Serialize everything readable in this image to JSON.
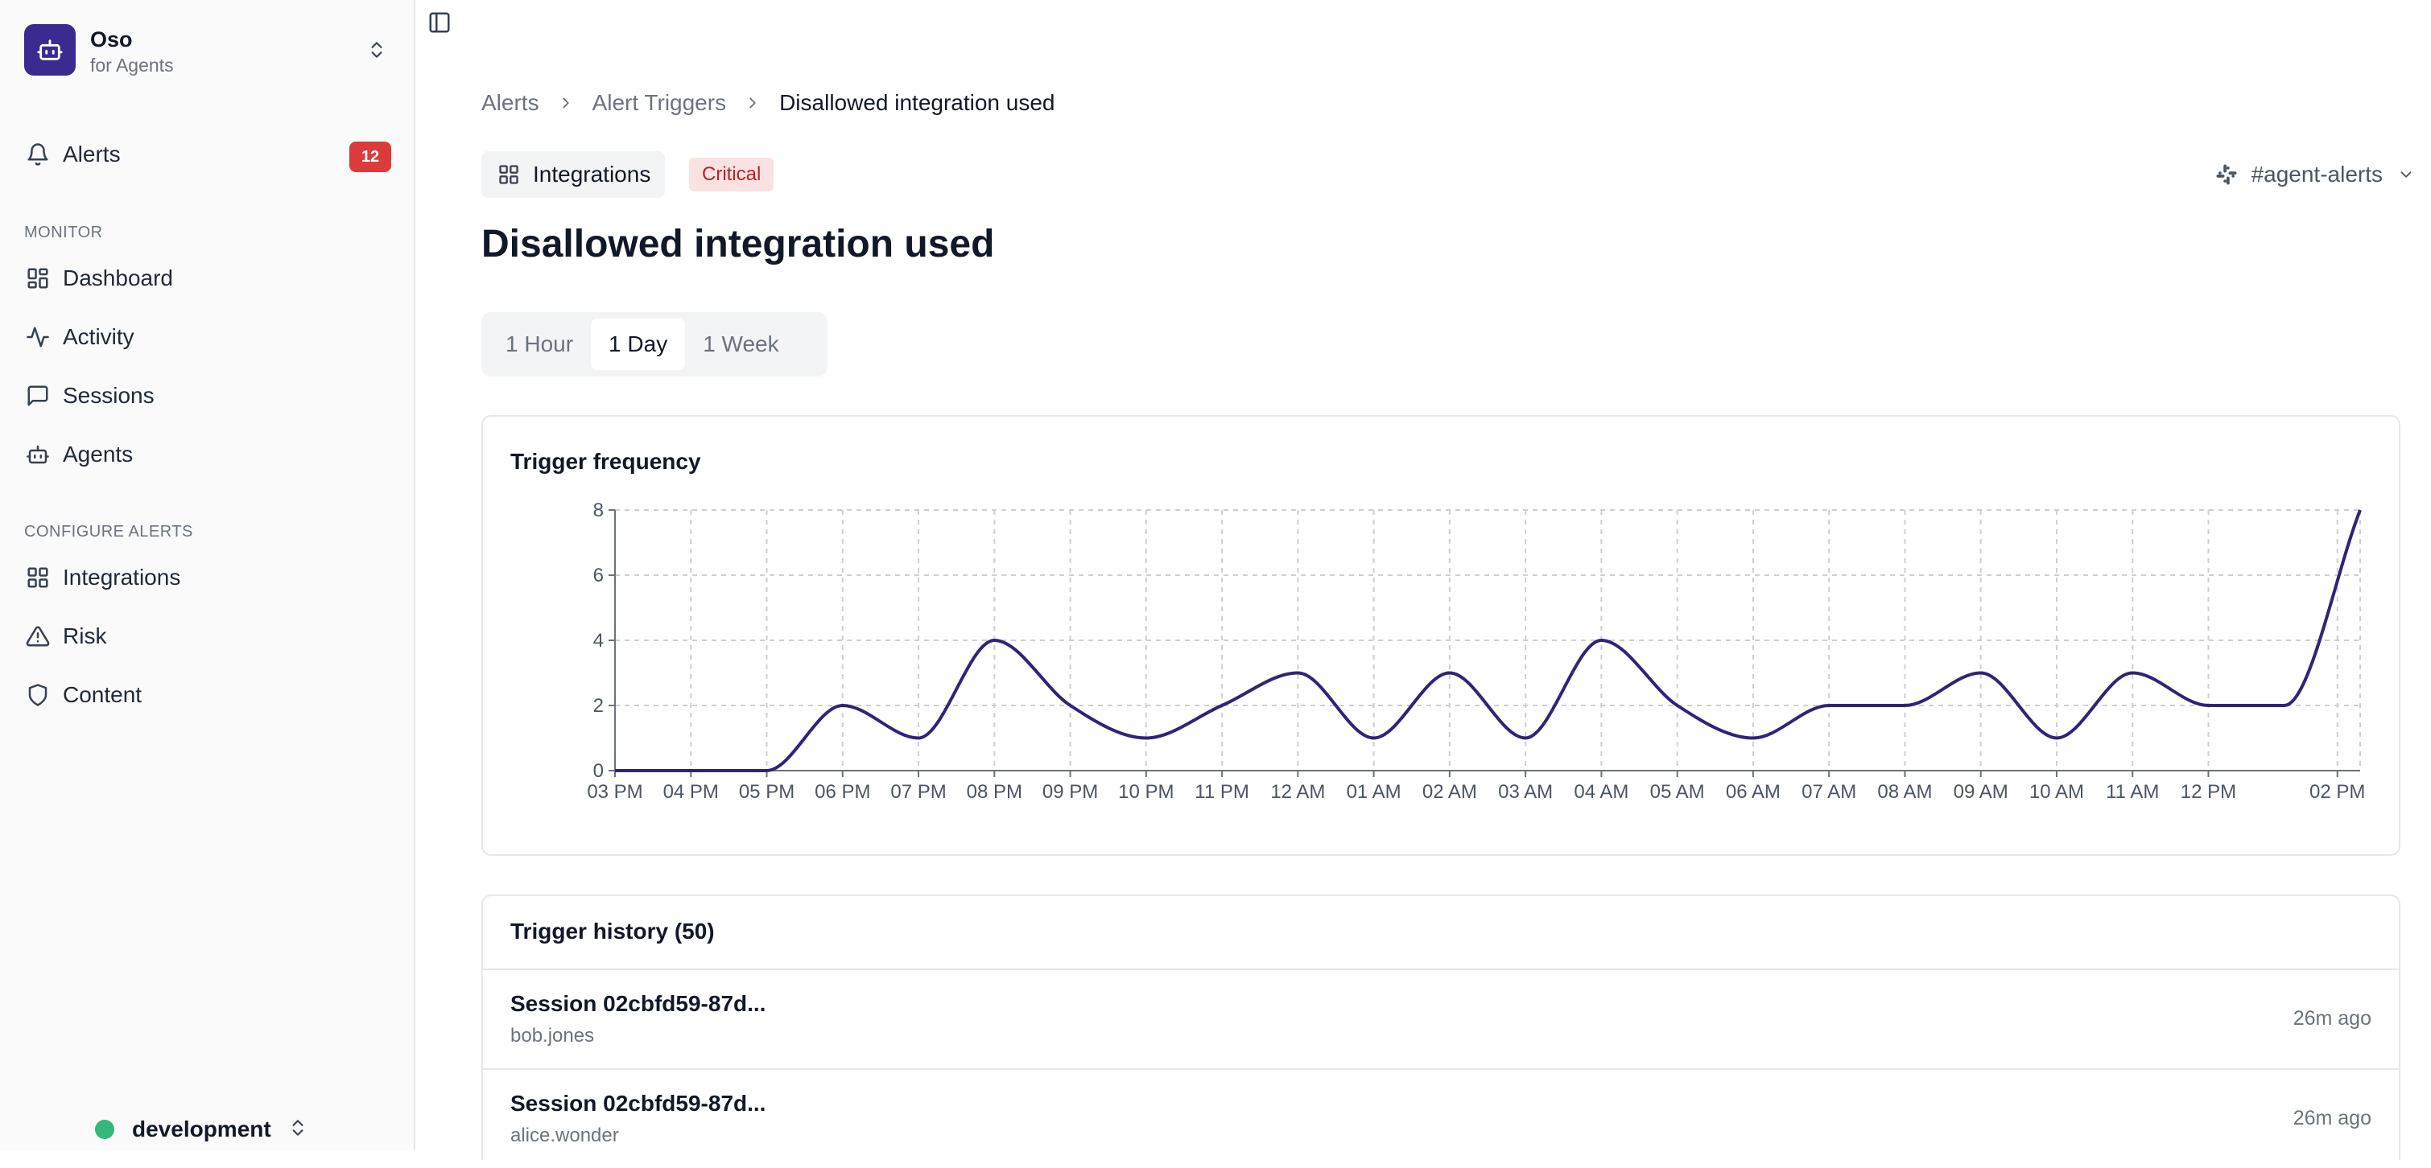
{
  "org": {
    "name": "Oso",
    "subtitle": "for Agents"
  },
  "sidebar": {
    "alerts": {
      "label": "Alerts",
      "count": "12"
    },
    "monitor_heading": "MONITOR",
    "monitor_items": [
      {
        "label": "Dashboard",
        "icon": "dashboard-icon"
      },
      {
        "label": "Activity",
        "icon": "activity-icon"
      },
      {
        "label": "Sessions",
        "icon": "message-square-icon"
      },
      {
        "label": "Agents",
        "icon": "bot-icon"
      }
    ],
    "configure_heading": "CONFIGURE ALERTS",
    "configure_items": [
      {
        "label": "Integrations",
        "icon": "integrations-icon"
      },
      {
        "label": "Risk",
        "icon": "warning-triangle-icon"
      },
      {
        "label": "Content",
        "icon": "shield-icon"
      }
    ],
    "environment": {
      "name": "development",
      "status_color": "#34b77a"
    }
  },
  "breadcrumb": [
    "Alerts",
    "Alert Triggers",
    "Disallowed integration used"
  ],
  "tags": {
    "category": "Integrations",
    "severity": "Critical"
  },
  "channel": "#agent-alerts",
  "title": "Disallowed integration used",
  "time_ranges": [
    {
      "label": "1 Hour",
      "active": false
    },
    {
      "label": "1 Day",
      "active": true
    },
    {
      "label": "1 Week",
      "active": false
    }
  ],
  "chart_data": {
    "type": "line",
    "title": "Trigger frequency",
    "x_tick_labels": [
      "03 PM",
      "04 PM",
      "05 PM",
      "06 PM",
      "07 PM",
      "08 PM",
      "09 PM",
      "10 PM",
      "11 PM",
      "12 AM",
      "01 AM",
      "02 AM",
      "03 AM",
      "04 AM",
      "05 AM",
      "06 AM",
      "07 AM",
      "08 AM",
      "09 AM",
      "10 AM",
      "11 AM",
      "12 PM",
      "02 PM"
    ],
    "x_tick_hours": [
      0,
      1,
      2,
      3,
      4,
      5,
      6,
      7,
      8,
      9,
      10,
      11,
      12,
      13,
      14,
      15,
      16,
      17,
      18,
      19,
      20,
      21,
      22.7
    ],
    "x": [
      0,
      1,
      2,
      3,
      4,
      5,
      6,
      7,
      8,
      9,
      10,
      11,
      12,
      13,
      14,
      15,
      16,
      17,
      18,
      19,
      20,
      21,
      22,
      23
    ],
    "y": [
      0,
      0,
      0,
      2,
      1,
      4,
      2,
      1,
      2,
      3,
      1,
      3,
      1,
      4,
      2,
      1,
      2,
      2,
      3,
      1,
      3,
      2,
      2,
      8
    ],
    "xlim": [
      0,
      23
    ],
    "ylim": [
      0,
      8
    ],
    "y_ticks": [
      0,
      2,
      4,
      6,
      8
    ],
    "grid": true,
    "line_color": "#2e2478"
  },
  "history": {
    "title": "Trigger history (50)",
    "rows": [
      {
        "title": "Session 02cbfd59-87d...",
        "user": "bob.jones",
        "time": "26m ago"
      },
      {
        "title": "Session 02cbfd59-87d...",
        "user": "alice.wonder",
        "time": "26m ago"
      }
    ]
  }
}
